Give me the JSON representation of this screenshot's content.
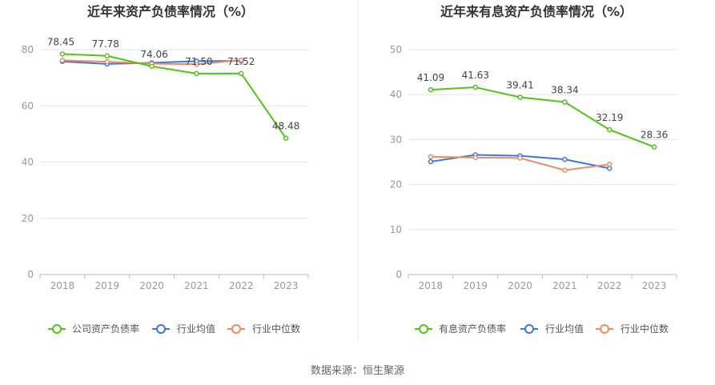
{
  "footer": {
    "source": "数据来源：恒生聚源"
  },
  "colors": {
    "company": "#52c41a",
    "avg": "#3c78d8",
    "median": "#f08a65",
    "grid": "#e6e6e6",
    "axis": "#bbbbbb",
    "tick": "#999999",
    "title": "#333333",
    "divider": "#eeeeee"
  },
  "chart_data": [
    {
      "type": "line",
      "title": "近年来资产负债率情况（%）",
      "categories": [
        "2018",
        "2019",
        "2020",
        "2021",
        "2022",
        "2023"
      ],
      "ylim": [
        0,
        80
      ],
      "yticks": [
        0,
        20,
        40,
        60,
        80
      ],
      "grid": true,
      "legend": "bottom",
      "series": [
        {
          "name": "公司资产负债率",
          "color": "#52c41a",
          "values": [
            78.45,
            77.78,
            74.06,
            71.5,
            71.52,
            48.48
          ],
          "labels": [
            "78.45",
            "77.78",
            "74.06",
            "71.50",
            "71.52",
            "48.48"
          ]
        },
        {
          "name": "行业均值",
          "color": "#3c78d8",
          "values": [
            75.8,
            74.9,
            75.3,
            75.9,
            76.0,
            null
          ]
        },
        {
          "name": "行业中位数",
          "color": "#f08a65",
          "values": [
            76.2,
            75.7,
            75.0,
            74.8,
            76.3,
            null
          ]
        }
      ]
    },
    {
      "type": "line",
      "title": "近年来有息资产负债率情况（%）",
      "categories": [
        "2018",
        "2019",
        "2020",
        "2021",
        "2022",
        "2023"
      ],
      "ylim": [
        0,
        50
      ],
      "yticks": [
        0,
        10,
        20,
        30,
        40,
        50
      ],
      "grid": true,
      "legend": "bottom",
      "series": [
        {
          "name": "有息资产负债率",
          "color": "#52c41a",
          "values": [
            41.09,
            41.63,
            39.41,
            38.34,
            32.19,
            28.36
          ],
          "labels": [
            "41.09",
            "41.63",
            "39.41",
            "38.34",
            "32.19",
            "28.36"
          ]
        },
        {
          "name": "行业均值",
          "color": "#3c78d8",
          "values": [
            25.1,
            26.6,
            26.4,
            25.6,
            23.6,
            null
          ]
        },
        {
          "name": "行业中位数",
          "color": "#f08a65",
          "values": [
            26.2,
            26.0,
            25.9,
            23.2,
            24.5,
            null
          ]
        }
      ]
    }
  ]
}
